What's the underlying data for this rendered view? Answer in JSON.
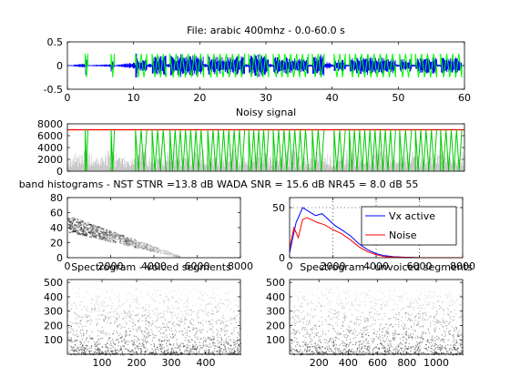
{
  "chart_data": [
    {
      "id": "signal",
      "type": "line",
      "title": "File: arabic 400mhz - 0.0-60.0 s",
      "xlabel": "",
      "ylabel": "",
      "xlim": [
        0,
        60
      ],
      "ylim": [
        -0.5,
        0.5
      ],
      "xticks": [
        "0",
        "10",
        "20",
        "30",
        "40",
        "50",
        "60"
      ],
      "yticks": [
        "0.5",
        "0",
        "-0.5"
      ],
      "series": [
        {
          "color": "#0000ff",
          "x": [
            0,
            2.7,
            3.0,
            6.6,
            7.2,
            10.2,
            10.8,
            12.5,
            14,
            17,
            20,
            23,
            26,
            29,
            31,
            33,
            35,
            38,
            39.5,
            40,
            41,
            43,
            45,
            47,
            50,
            52,
            55,
            57,
            59,
            60
          ],
          "y": [
            0,
            0.28,
            0.04,
            0.18,
            0.06,
            0.42,
            0.1,
            0.22,
            0.2,
            0.24,
            0.22,
            0.18,
            0.2,
            0.24,
            0.2,
            0.18,
            0.16,
            0.2,
            0.46,
            0.15,
            0.12,
            0.16,
            0.2,
            0.18,
            0.16,
            0.14,
            0.18,
            0.16,
            0.18,
            0.02
          ]
        },
        {
          "color": "#00ff00",
          "segments": [
            [
              2.7,
              3.1
            ],
            [
              6.6,
              7.1
            ],
            [
              10.3,
              12.0
            ],
            [
              12.8,
              14.9
            ],
            [
              15.5,
              20.6
            ],
            [
              21.2,
              26.8
            ],
            [
              27.4,
              30.4
            ],
            [
              31.1,
              36.4
            ],
            [
              37.0,
              38.8
            ],
            [
              40.3,
              42.0
            ],
            [
              42.6,
              49.6
            ],
            [
              50.2,
              52.0
            ],
            [
              52.6,
              55.8
            ],
            [
              56.4,
              59.6
            ]
          ],
          "level": 0.25
        }
      ]
    },
    {
      "id": "noisy",
      "type": "area",
      "title": "Noisy signal",
      "xlim": [
        0,
        60
      ],
      "ylim": [
        0,
        8000
      ],
      "yticks": [
        "8000",
        "6000",
        "4000",
        "2000",
        "0"
      ],
      "series": [
        {
          "color": "#ff0000",
          "values": [
            {
              "x": 0,
              "y": 7000
            },
            {
              "x": 60,
              "y": 7000
            }
          ]
        },
        {
          "color": "#00ff00",
          "level": 7000
        }
      ]
    },
    {
      "id": "hist-vx",
      "type": "heatmap",
      "title": "band histograms - NST STNR =13.8 dB WADA SNR = 15.6 dB NR45 = 8.0 dB 55",
      "xlim": [
        0,
        8000
      ],
      "ylim": [
        0,
        80
      ],
      "xticks": [
        "0",
        "2000",
        "4000",
        "6000",
        "8000"
      ],
      "yticks": [
        "80",
        "60",
        "40",
        "20",
        "0"
      ]
    },
    {
      "id": "hist-lines",
      "type": "line",
      "title": "",
      "xlim": [
        0,
        8000
      ],
      "ylim": [
        0,
        60
      ],
      "xticks": [
        "0",
        "2000",
        "4000",
        "6000",
        "8000"
      ],
      "yticks": [
        "50",
        "0"
      ],
      "legend": {
        "position": "top-right"
      },
      "series": [
        {
          "name": "Vx active",
          "color": "#0000ff",
          "x": [
            0,
            300,
            600,
            900,
            1200,
            1500,
            1800,
            2100,
            2400,
            2800,
            3200,
            3600,
            4000,
            4400,
            4800,
            5200,
            6000,
            8000
          ],
          "y": [
            5,
            35,
            50,
            46,
            42,
            44,
            38,
            32,
            28,
            22,
            14,
            8,
            4,
            2,
            1,
            0.5,
            0,
            0
          ]
        },
        {
          "name": "Noise",
          "color": "#ff0000",
          "x": [
            0,
            200,
            400,
            600,
            800,
            1000,
            1300,
            1600,
            2000,
            2400,
            2800,
            3200,
            3600,
            4000,
            4400,
            5000,
            6000,
            8000
          ],
          "y": [
            10,
            30,
            20,
            38,
            40,
            38,
            35,
            33,
            28,
            24,
            18,
            11,
            6,
            3,
            1,
            0.5,
            0,
            0
          ]
        }
      ]
    },
    {
      "id": "spec-voiced",
      "type": "heatmap",
      "title": "Spectrogram - voiced segments",
      "xlim": [
        0,
        500
      ],
      "ylim": [
        0,
        520
      ],
      "xticks": [
        "100",
        "200",
        "300",
        "400"
      ],
      "yticks": [
        "500",
        "400",
        "300",
        "200",
        "100"
      ]
    },
    {
      "id": "spec-unvoiced",
      "type": "heatmap",
      "title": "Spectrogram - unvoiced segments",
      "xlim": [
        0,
        1180
      ],
      "ylim": [
        0,
        520
      ],
      "xticks": [
        "200",
        "400",
        "600",
        "800",
        "1000"
      ],
      "yticks": [
        "500",
        "400",
        "300",
        "200",
        "100"
      ]
    }
  ]
}
